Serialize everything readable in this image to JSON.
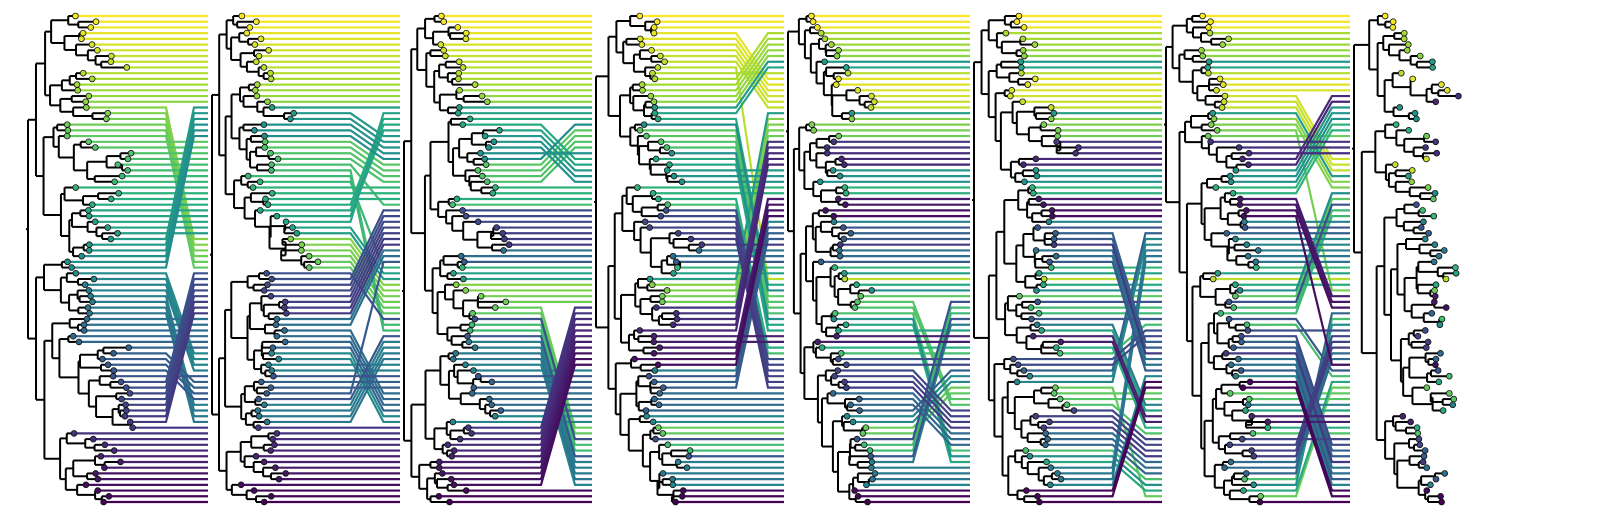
{
  "figure": {
    "kind": "tanglegram-series",
    "tree_count": 8,
    "tips_per_tree": 86,
    "colormap": "viridis",
    "palette": [
      "#440154",
      "#472d7b",
      "#3b528b",
      "#2c728e",
      "#21918c",
      "#28ae80",
      "#5ec962",
      "#addc30",
      "#fde725"
    ],
    "branch_color": "#000000",
    "background": "#ffffff"
  }
}
